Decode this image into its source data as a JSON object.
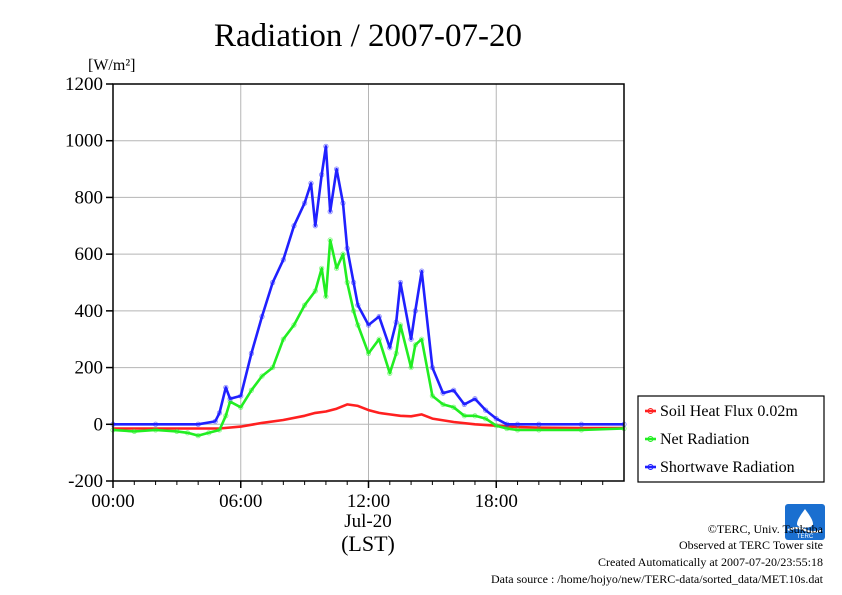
{
  "title": "Radiation / 2007-07-20",
  "unit_label": "[W/m²]",
  "xlabel_date": "Jul-20",
  "xlabel_unit": "(LST)",
  "credits": {
    "copyright": "©TERC, Univ. Tsukuba",
    "site": "Observed at TERC Tower site",
    "created": "Created Automatically at 2007-07-20/23:55:18",
    "source": "Data source : /home/hojyo/new/TERC-data/sorted_data/MET.10s.dat",
    "logo_text": "TERC"
  },
  "chart_data": {
    "type": "line",
    "title": "Radiation / 2007-07-20",
    "ylabel": "[W/m²]",
    "xlabel": "(LST)",
    "x_units": "hours",
    "xlim": [
      0,
      24
    ],
    "ylim": [
      -200,
      1200
    ],
    "x_ticks": [
      {
        "value": 0,
        "label": "00:00"
      },
      {
        "value": 6,
        "label": "06:00"
      },
      {
        "value": 12,
        "label": "12:00"
      },
      {
        "value": 18,
        "label": "18:00"
      }
    ],
    "y_ticks": [
      -200,
      0,
      200,
      400,
      600,
      800,
      1000,
      1200
    ],
    "grid": true,
    "legend_position": "right",
    "series": [
      {
        "name": "Soil Heat Flux 0.02m",
        "color": "#ff2020",
        "x": [
          0,
          2,
          4,
          5,
          6,
          7,
          8,
          9,
          9.5,
          10,
          10.5,
          11,
          11.5,
          12,
          12.5,
          13,
          13.5,
          14,
          14.5,
          15,
          16,
          17,
          18,
          19,
          20,
          22,
          24
        ],
        "y": [
          -15,
          -15,
          -15,
          -15,
          -8,
          5,
          15,
          30,
          40,
          45,
          55,
          70,
          65,
          50,
          40,
          35,
          30,
          28,
          35,
          20,
          8,
          0,
          -5,
          -10,
          -12,
          -13,
          -13
        ]
      },
      {
        "name": "Net Radiation",
        "color": "#22ee22",
        "x": [
          0,
          1,
          2,
          3,
          3.5,
          4,
          4.5,
          5,
          5.3,
          5.5,
          6,
          6.5,
          7,
          7.5,
          8,
          8.5,
          9,
          9.5,
          9.8,
          10,
          10.2,
          10.5,
          10.8,
          11,
          11.3,
          11.5,
          12,
          12.5,
          13,
          13.3,
          13.5,
          14,
          14.2,
          14.5,
          15,
          15.5,
          16,
          16.5,
          17,
          17.5,
          18,
          18.5,
          19,
          20,
          22,
          24
        ],
        "y": [
          -20,
          -25,
          -20,
          -25,
          -30,
          -40,
          -30,
          -20,
          30,
          80,
          60,
          120,
          170,
          200,
          300,
          350,
          420,
          470,
          550,
          450,
          650,
          550,
          600,
          500,
          400,
          350,
          250,
          300,
          180,
          250,
          350,
          200,
          280,
          300,
          100,
          70,
          60,
          30,
          30,
          20,
          -5,
          -15,
          -20,
          -20,
          -20,
          -15
        ]
      },
      {
        "name": "Shortwave Radiation",
        "color": "#2020ff",
        "x": [
          0,
          2,
          4,
          4.8,
          5,
          5.3,
          5.5,
          6,
          6.5,
          7,
          7.5,
          8,
          8.5,
          9,
          9.3,
          9.5,
          9.8,
          10,
          10.2,
          10.5,
          10.8,
          11,
          11.3,
          11.5,
          12,
          12.5,
          13,
          13.3,
          13.5,
          14,
          14.2,
          14.5,
          15,
          15.5,
          16,
          16.5,
          17,
          17.5,
          18,
          18.5,
          19,
          20,
          22,
          24
        ],
        "y": [
          0,
          0,
          0,
          10,
          40,
          130,
          90,
          100,
          250,
          380,
          500,
          580,
          700,
          780,
          850,
          700,
          880,
          980,
          750,
          900,
          780,
          620,
          500,
          420,
          350,
          380,
          270,
          360,
          500,
          300,
          400,
          540,
          200,
          110,
          120,
          70,
          90,
          50,
          20,
          0,
          0,
          0,
          0,
          0
        ]
      }
    ]
  }
}
